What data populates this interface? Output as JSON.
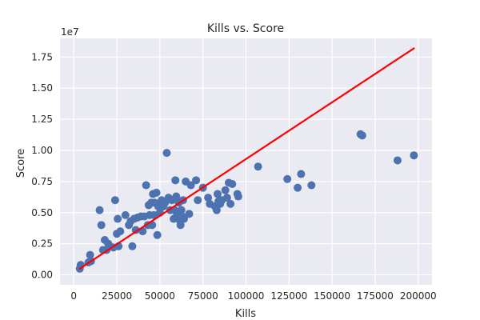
{
  "chart_data": {
    "type": "scatter",
    "title": "Kills vs. Score",
    "xlabel": "Kills",
    "ylabel": "Score",
    "y_offset_label": "1e7",
    "xlim": [
      -8000,
      208000
    ],
    "ylim": [
      -0.08,
      1.9
    ],
    "xticks": [
      0,
      25000,
      50000,
      75000,
      100000,
      125000,
      150000,
      175000,
      200000
    ],
    "xtick_labels": [
      "0",
      "25000",
      "50000",
      "75000",
      "100000",
      "125000",
      "150000",
      "175000",
      "200000"
    ],
    "yticks": [
      0,
      0.25,
      0.5,
      0.75,
      1.0,
      1.25,
      1.5,
      1.75
    ],
    "ytick_labels": [
      "0.00",
      "0.25",
      "0.50",
      "0.75",
      "1.00",
      "1.25",
      "1.50",
      "1.75"
    ],
    "grid": true,
    "background_color": "#eaeaf2",
    "point_color": "#4c72b0",
    "trend_color": "#ff0000",
    "trend_line": {
      "x": [
        3500,
        197500
      ],
      "y": [
        0.05,
        1.82
      ]
    },
    "points": [
      {
        "x": 3500,
        "y": 0.05
      },
      {
        "x": 4000,
        "y": 0.08
      },
      {
        "x": 8500,
        "y": 0.1
      },
      {
        "x": 9500,
        "y": 0.16
      },
      {
        "x": 10000,
        "y": 0.11
      },
      {
        "x": 15000,
        "y": 0.52
      },
      {
        "x": 16000,
        "y": 0.4
      },
      {
        "x": 17000,
        "y": 0.2
      },
      {
        "x": 18000,
        "y": 0.28
      },
      {
        "x": 19000,
        "y": 0.2
      },
      {
        "x": 20000,
        "y": 0.25
      },
      {
        "x": 21000,
        "y": 0.23
      },
      {
        "x": 23000,
        "y": 0.22
      },
      {
        "x": 24000,
        "y": 0.6
      },
      {
        "x": 25000,
        "y": 0.33
      },
      {
        "x": 25500,
        "y": 0.45
      },
      {
        "x": 26000,
        "y": 0.23
      },
      {
        "x": 27000,
        "y": 0.35
      },
      {
        "x": 30000,
        "y": 0.48
      },
      {
        "x": 32000,
        "y": 0.4
      },
      {
        "x": 33000,
        "y": 0.43
      },
      {
        "x": 34000,
        "y": 0.23
      },
      {
        "x": 35000,
        "y": 0.45
      },
      {
        "x": 36000,
        "y": 0.36
      },
      {
        "x": 37000,
        "y": 0.46
      },
      {
        "x": 39000,
        "y": 0.47
      },
      {
        "x": 40000,
        "y": 0.35
      },
      {
        "x": 41000,
        "y": 0.47
      },
      {
        "x": 42000,
        "y": 0.72
      },
      {
        "x": 43000,
        "y": 0.4
      },
      {
        "x": 43500,
        "y": 0.56
      },
      {
        "x": 44000,
        "y": 0.48
      },
      {
        "x": 45000,
        "y": 0.58
      },
      {
        "x": 45500,
        "y": 0.4
      },
      {
        "x": 46000,
        "y": 0.65
      },
      {
        "x": 46500,
        "y": 0.48
      },
      {
        "x": 47000,
        "y": 0.58
      },
      {
        "x": 48000,
        "y": 0.66
      },
      {
        "x": 48500,
        "y": 0.32
      },
      {
        "x": 49000,
        "y": 0.55
      },
      {
        "x": 50000,
        "y": 0.5
      },
      {
        "x": 51000,
        "y": 0.6
      },
      {
        "x": 52000,
        "y": 0.55
      },
      {
        "x": 53000,
        "y": 0.58
      },
      {
        "x": 54000,
        "y": 0.98
      },
      {
        "x": 55000,
        "y": 0.62
      },
      {
        "x": 56000,
        "y": 0.52
      },
      {
        "x": 57000,
        "y": 0.6
      },
      {
        "x": 58000,
        "y": 0.45
      },
      {
        "x": 58500,
        "y": 0.52
      },
      {
        "x": 59000,
        "y": 0.76
      },
      {
        "x": 59500,
        "y": 0.63
      },
      {
        "x": 60000,
        "y": 0.48
      },
      {
        "x": 61000,
        "y": 0.58
      },
      {
        "x": 61500,
        "y": 0.44
      },
      {
        "x": 62000,
        "y": 0.4
      },
      {
        "x": 62500,
        "y": 0.52
      },
      {
        "x": 63000,
        "y": 0.47
      },
      {
        "x": 63500,
        "y": 0.6
      },
      {
        "x": 64000,
        "y": 0.45
      },
      {
        "x": 65000,
        "y": 0.75
      },
      {
        "x": 67000,
        "y": 0.49
      },
      {
        "x": 68000,
        "y": 0.72
      },
      {
        "x": 71000,
        "y": 0.76
      },
      {
        "x": 72000,
        "y": 0.6
      },
      {
        "x": 75000,
        "y": 0.7
      },
      {
        "x": 78000,
        "y": 0.62
      },
      {
        "x": 79000,
        "y": 0.57
      },
      {
        "x": 82000,
        "y": 0.55
      },
      {
        "x": 83000,
        "y": 0.52
      },
      {
        "x": 83500,
        "y": 0.65
      },
      {
        "x": 84000,
        "y": 0.59
      },
      {
        "x": 85000,
        "y": 0.57
      },
      {
        "x": 86000,
        "y": 0.6
      },
      {
        "x": 88000,
        "y": 0.68
      },
      {
        "x": 89000,
        "y": 0.62
      },
      {
        "x": 90000,
        "y": 0.74
      },
      {
        "x": 91000,
        "y": 0.57
      },
      {
        "x": 92000,
        "y": 0.73
      },
      {
        "x": 95000,
        "y": 0.65
      },
      {
        "x": 95500,
        "y": 0.63
      },
      {
        "x": 107000,
        "y": 0.87
      },
      {
        "x": 124000,
        "y": 0.77
      },
      {
        "x": 130000,
        "y": 0.7
      },
      {
        "x": 132000,
        "y": 0.81
      },
      {
        "x": 138000,
        "y": 0.72
      },
      {
        "x": 166500,
        "y": 1.13
      },
      {
        "x": 167500,
        "y": 1.12
      },
      {
        "x": 188000,
        "y": 0.92
      },
      {
        "x": 197500,
        "y": 0.96
      }
    ]
  }
}
